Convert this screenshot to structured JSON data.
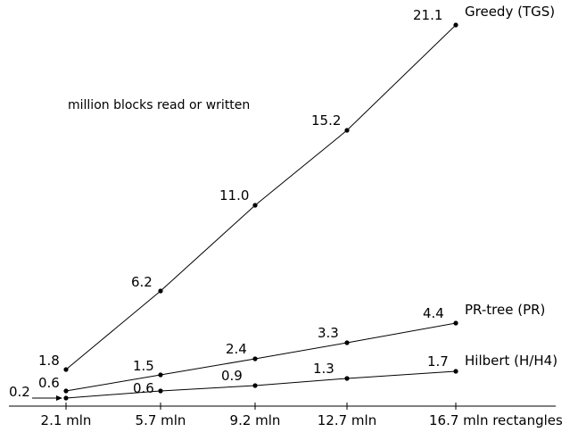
{
  "chart_data": {
    "type": "line",
    "annotation": "million blocks read or written",
    "categories": [
      "2.1 mln",
      "5.7 mln",
      "9.2 mln",
      "12.7 mln",
      "16.7 mln rectangles"
    ],
    "x": [
      2.1,
      5.7,
      9.2,
      12.7,
      16.7
    ],
    "series": [
      {
        "name": "Greedy (TGS)",
        "values": [
          1.8,
          6.2,
          11.0,
          15.2,
          21.1
        ],
        "labels": [
          "1.8",
          "6.2",
          "11.0",
          "15.2",
          "21.1"
        ]
      },
      {
        "name": "PR-tree (PR)",
        "values": [
          0.6,
          1.5,
          2.4,
          3.3,
          4.4
        ],
        "labels": [
          "0.6",
          "1.5",
          "2.4",
          "3.3",
          "4.4"
        ]
      },
      {
        "name": "Hilbert (H/H4)",
        "values": [
          0.2,
          0.6,
          0.9,
          1.3,
          1.7
        ],
        "labels": [
          "0.2",
          "0.6",
          "0.9",
          "1.3",
          "1.7"
        ]
      }
    ],
    "grid": false,
    "line_color": "#000000",
    "background": "#ffffff"
  }
}
